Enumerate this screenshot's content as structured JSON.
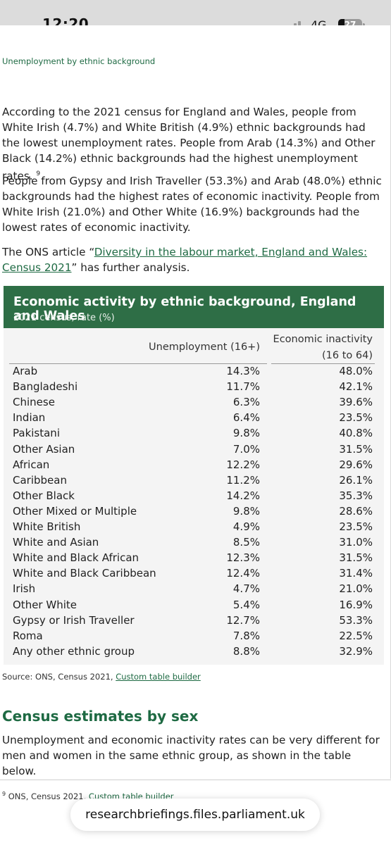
{
  "status_bar": {
    "time": "12:20",
    "network": "4G",
    "battery": "27"
  },
  "section_label": "Unemployment by ethnic background",
  "paragraphs": {
    "p1": "According to the 2021 census for England and Wales, people from White Irish (4.7%) and White British (4.9%) ethnic backgrounds had the lowest unemployment rates. People from Arab (14.3%) and Other Black (14.2%) ethnic backgrounds had the highest unemployment rates.",
    "p1_ref": "9",
    "p2": "People from Gypsy and Irish Traveller (53.3%) and Arab (48.0%) ethnic backgrounds had the highest rates of economic inactivity. People from White Irish (21.0%) and Other White (16.9%) backgrounds had the lowest rates of economic inactivity.",
    "p3_before": "The ONS article “",
    "p3_link": "Diversity in the labour market, England and Wales: Census 2021",
    "p3_after": "” has further analysis."
  },
  "table": {
    "title": "Economic activity by ethnic background, England and Wales",
    "subtitle": "2021 census, rate (%)",
    "col1": "Unemployment (16+)",
    "col2_line1": "Economic inactivity",
    "col2_line2": "(16 to 64)",
    "rows": [
      {
        "name": "Arab",
        "unemployment": "14.3%",
        "inactivity": "48.0%"
      },
      {
        "name": "Bangladeshi",
        "unemployment": "11.7%",
        "inactivity": "42.1%"
      },
      {
        "name": "Chinese",
        "unemployment": "6.3%",
        "inactivity": "39.6%"
      },
      {
        "name": "Indian",
        "unemployment": "6.4%",
        "inactivity": "23.5%"
      },
      {
        "name": "Pakistani",
        "unemployment": "9.8%",
        "inactivity": "40.8%"
      },
      {
        "name": "Other Asian",
        "unemployment": "7.0%",
        "inactivity": "31.5%"
      },
      {
        "name": "African",
        "unemployment": "12.2%",
        "inactivity": "29.6%"
      },
      {
        "name": "Caribbean",
        "unemployment": "11.2%",
        "inactivity": "26.1%"
      },
      {
        "name": "Other Black",
        "unemployment": "14.2%",
        "inactivity": "35.3%"
      },
      {
        "name": "Other Mixed or Multiple",
        "unemployment": "9.8%",
        "inactivity": "28.6%"
      },
      {
        "name": "White British",
        "unemployment": "4.9%",
        "inactivity": "23.5%"
      },
      {
        "name": "White and Asian",
        "unemployment": "8.5%",
        "inactivity": "31.0%"
      },
      {
        "name": "White and Black African",
        "unemployment": "12.3%",
        "inactivity": "31.5%"
      },
      {
        "name": "White and Black Caribbean",
        "unemployment": "12.4%",
        "inactivity": "31.4%"
      },
      {
        "name": "Irish",
        "unemployment": "4.7%",
        "inactivity": "21.0%"
      },
      {
        "name": "Other White",
        "unemployment": "5.4%",
        "inactivity": "16.9%"
      },
      {
        "name": "Gypsy or Irish Traveller",
        "unemployment": "12.7%",
        "inactivity": "53.3%"
      },
      {
        "name": "Roma",
        "unemployment": "7.8%",
        "inactivity": "22.5%"
      },
      {
        "name": "Any other ethnic group",
        "unemployment": "8.8%",
        "inactivity": "32.9%"
      }
    ]
  },
  "source": {
    "text": "Source: ONS, Census 2021, ",
    "link": "Custom table builder"
  },
  "section2": {
    "heading": "Census estimates by sex",
    "body": "Unemployment and economic inactivity rates can be very different for men and women in the same ethnic group, as shown in the table below."
  },
  "footnote": {
    "ref": "9",
    "text": " ONS, Census 2021, ",
    "link": "Custom table builder"
  },
  "url_bar": {
    "domain": "researchbriefings.files.parliament.uk"
  },
  "colors": {
    "accent": "#1e6a43",
    "table_header": "#2e6e46",
    "table_bg": "#f4f4f4"
  }
}
